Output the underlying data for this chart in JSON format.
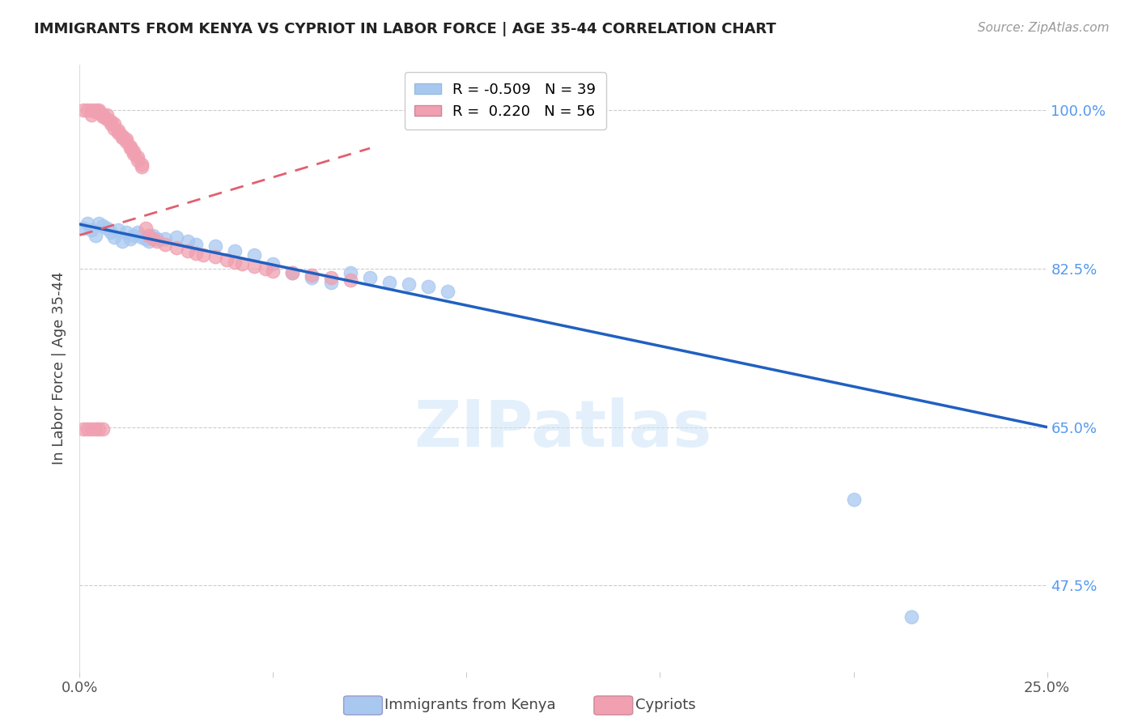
{
  "title": "IMMIGRANTS FROM KENYA VS CYPRIOT IN LABOR FORCE | AGE 35-44 CORRELATION CHART",
  "source": "Source: ZipAtlas.com",
  "ylabel": "In Labor Force | Age 35-44",
  "yticks_pct": [
    47.5,
    65.0,
    82.5,
    100.0
  ],
  "ytick_labels": [
    "47.5%",
    "65.0%",
    "82.5%",
    "100.0%"
  ],
  "xmin": 0.0,
  "xmax": 0.25,
  "ymin": 0.38,
  "ymax": 1.05,
  "legend_r_kenya": "-0.509",
  "legend_n_kenya": "39",
  "legend_r_cypriot": "0.220",
  "legend_n_cypriot": "56",
  "watermark": "ZIPatlas",
  "kenya_color": "#a8c8f0",
  "cypriot_color": "#f0a0b0",
  "kenya_line_color": "#2060c0",
  "cypriot_line_color": "#e06070",
  "kenya_scatter_x": [
    0.001,
    0.002,
    0.003,
    0.004,
    0.005,
    0.006,
    0.007,
    0.008,
    0.009,
    0.01,
    0.011,
    0.012,
    0.013,
    0.014,
    0.015,
    0.016,
    0.017,
    0.018,
    0.019,
    0.02,
    0.022,
    0.025,
    0.028,
    0.03,
    0.035,
    0.04,
    0.045,
    0.05,
    0.055,
    0.06,
    0.065,
    0.07,
    0.075,
    0.08,
    0.085,
    0.09,
    0.095,
    0.2,
    0.215
  ],
  "kenya_scatter_y": [
    0.87,
    0.875,
    0.868,
    0.862,
    0.875,
    0.872,
    0.87,
    0.865,
    0.86,
    0.868,
    0.855,
    0.865,
    0.858,
    0.862,
    0.865,
    0.86,
    0.858,
    0.855,
    0.862,
    0.858,
    0.858,
    0.86,
    0.855,
    0.852,
    0.85,
    0.845,
    0.84,
    0.83,
    0.82,
    0.815,
    0.81,
    0.82,
    0.815,
    0.81,
    0.808,
    0.805,
    0.8,
    0.57,
    0.44
  ],
  "cypriot_scatter_x": [
    0.001,
    0.002,
    0.003,
    0.003,
    0.004,
    0.004,
    0.005,
    0.005,
    0.006,
    0.006,
    0.007,
    0.007,
    0.008,
    0.008,
    0.009,
    0.009,
    0.01,
    0.01,
    0.011,
    0.011,
    0.012,
    0.012,
    0.013,
    0.013,
    0.014,
    0.014,
    0.015,
    0.015,
    0.016,
    0.016,
    0.017,
    0.018,
    0.019,
    0.02,
    0.022,
    0.025,
    0.028,
    0.03,
    0.032,
    0.035,
    0.038,
    0.04,
    0.042,
    0.045,
    0.048,
    0.05,
    0.055,
    0.06,
    0.065,
    0.07,
    0.001,
    0.002,
    0.003,
    0.004,
    0.005,
    0.006
  ],
  "cypriot_scatter_y": [
    1.0,
    1.0,
    1.0,
    0.995,
    1.0,
    0.998,
    1.0,
    0.998,
    0.993,
    0.995,
    0.995,
    0.99,
    0.988,
    0.985,
    0.985,
    0.98,
    0.978,
    0.975,
    0.972,
    0.97,
    0.968,
    0.965,
    0.96,
    0.958,
    0.955,
    0.952,
    0.948,
    0.945,
    0.94,
    0.938,
    0.87,
    0.862,
    0.858,
    0.855,
    0.852,
    0.848,
    0.845,
    0.842,
    0.84,
    0.838,
    0.835,
    0.832,
    0.83,
    0.828,
    0.825,
    0.822,
    0.82,
    0.818,
    0.815,
    0.812,
    0.648,
    0.648,
    0.648,
    0.648,
    0.648,
    0.648
  ],
  "kenya_trend_x": [
    0.0,
    0.25
  ],
  "kenya_trend_y": [
    0.874,
    0.65
  ],
  "cypriot_trend_x": [
    0.0,
    0.075
  ],
  "cypriot_trend_y": [
    0.862,
    0.958
  ]
}
